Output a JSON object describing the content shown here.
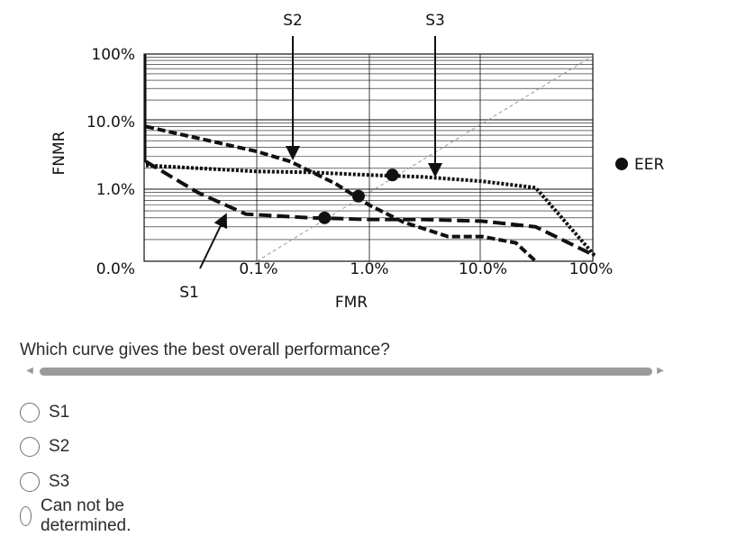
{
  "chart_data": {
    "type": "line",
    "xlabel": "FMR",
    "ylabel": "FNMR",
    "x_ticks": [
      "0.1%",
      "1.0%",
      "10.0%",
      "100%"
    ],
    "y_ticks": [
      "100%",
      "10.0%",
      "1.0%",
      "0.0%"
    ],
    "x_scale": "log",
    "y_scale": "log",
    "grid": true,
    "legend_position": "right",
    "legend": [
      {
        "marker": "filled-circle",
        "label": "EER"
      }
    ],
    "series": [
      {
        "name": "S1",
        "style": "long-dash",
        "x": [
          0.011,
          0.03,
          0.08,
          0.3,
          1.0,
          3.0,
          10.0,
          30.0,
          100.0
        ],
        "y": [
          2.5,
          0.9,
          0.45,
          0.4,
          0.38,
          0.38,
          0.36,
          0.3,
          0.12
        ]
      },
      {
        "name": "S2",
        "style": "dash",
        "x": [
          0.011,
          0.1,
          0.2,
          0.5,
          1.0,
          2.0,
          5.0,
          10.0,
          20.0,
          30.0
        ],
        "y": [
          8.0,
          3.5,
          2.5,
          1.2,
          0.6,
          0.35,
          0.22,
          0.22,
          0.18,
          0.1
        ]
      },
      {
        "name": "S3",
        "style": "dotted",
        "x": [
          0.011,
          0.1,
          0.3,
          1.0,
          3.0,
          10.0,
          30.0,
          100.0
        ],
        "y": [
          2.2,
          1.8,
          1.75,
          1.6,
          1.5,
          1.3,
          1.05,
          0.12
        ]
      }
    ],
    "eer_points": [
      {
        "series": "S1",
        "x": 0.4,
        "y": 0.4
      },
      {
        "series": "S2",
        "x": 0.8,
        "y": 0.8
      },
      {
        "series": "S3",
        "x": 1.6,
        "y": 1.6
      }
    ],
    "annotations": [
      "S1",
      "S2",
      "S3"
    ]
  },
  "question": "Which curve gives the best overall performance?",
  "options": [
    "S1",
    "S2",
    "S3",
    "Can not be determined."
  ],
  "colors": {
    "text": "#2b2b2b",
    "scrollbar": "#9a9a9a",
    "chart_ink": "#111111"
  }
}
